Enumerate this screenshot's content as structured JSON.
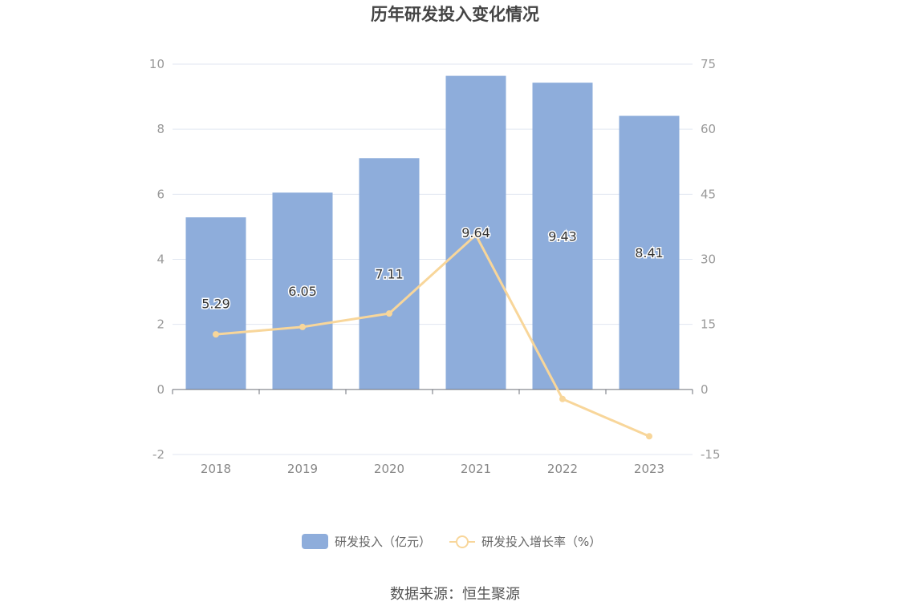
{
  "chart_data": {
    "type": "bar",
    "title": "历年研发投入变化情况",
    "categories": [
      "2018",
      "2019",
      "2020",
      "2021",
      "2022",
      "2023"
    ],
    "series": [
      {
        "name": "研发投入（亿元）",
        "type": "bar",
        "axis": "left",
        "values": [
          5.29,
          6.05,
          7.11,
          9.64,
          9.43,
          8.41
        ],
        "labels": [
          "5.29",
          "6.05",
          "7.11",
          "9.64",
          "9.43",
          "8.41"
        ],
        "color": "#8eaddb"
      },
      {
        "name": "研发投入增长率（%）",
        "type": "line",
        "axis": "right",
        "values": [
          12.7,
          14.4,
          17.5,
          35.6,
          -2.2,
          -10.8
        ],
        "color": "#f8d69a"
      }
    ],
    "y_left": {
      "min": -2,
      "max": 10,
      "ticks": [
        "-2",
        "0",
        "2",
        "4",
        "6",
        "8",
        "10"
      ]
    },
    "y_right": {
      "min": -15,
      "max": 75,
      "ticks": [
        "-15",
        "0",
        "15",
        "30",
        "45",
        "60",
        "75"
      ]
    },
    "grid": true,
    "legend": "bottom-center"
  },
  "source": "数据来源：恒生聚源",
  "colors": {
    "bar": "#8eaddb",
    "line": "#f8d69a",
    "grid": "#e0e6f1",
    "axis": "#6e7079"
  }
}
